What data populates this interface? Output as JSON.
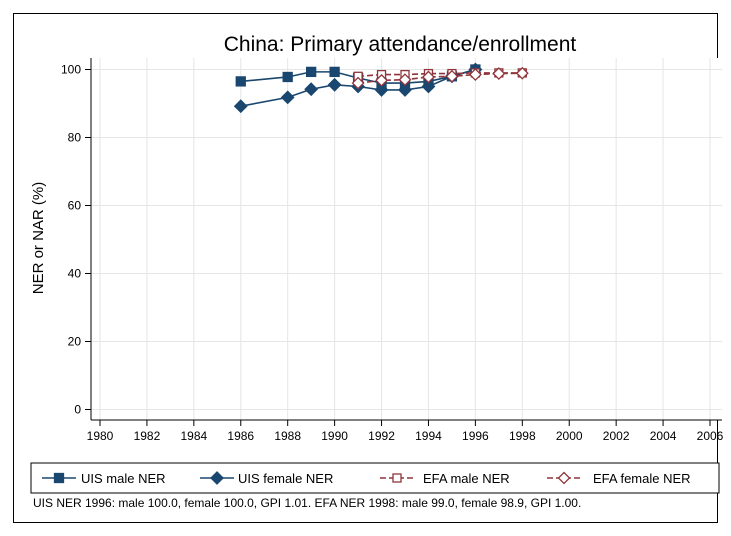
{
  "chart_data": {
    "type": "line",
    "title": "China: Primary attendance/enrollment",
    "xlabel": "",
    "ylabel": "NER or NAR (%)",
    "xlim": [
      1980,
      2006
    ],
    "ylim": [
      0,
      100
    ],
    "xticks": [
      "1980",
      "1982",
      "1984",
      "1986",
      "1988",
      "1990",
      "1992",
      "1994",
      "1996",
      "1998",
      "2000",
      "2002",
      "2004",
      "2006"
    ],
    "yticks": [
      "0",
      "20",
      "40",
      "60",
      "80",
      "100"
    ],
    "grid": true,
    "legend_position": "bottom",
    "series": [
      {
        "name": "UIS male NER",
        "color": "#1a476f",
        "marker": "filled-square",
        "line": "solid",
        "x": [
          1986,
          1988,
          1989,
          1990,
          1991,
          1992,
          1993,
          1994,
          1995,
          1996
        ],
        "y": [
          96.5,
          97.8,
          99.3,
          99.3,
          97.5,
          96.0,
          96.0,
          96.5,
          98.0,
          100.0
        ]
      },
      {
        "name": "UIS female NER",
        "color": "#1a476f",
        "marker": "filled-diamond",
        "line": "solid",
        "x": [
          1986,
          1988,
          1989,
          1990,
          1991,
          1992,
          1993,
          1994,
          1995,
          1996
        ],
        "y": [
          89.2,
          91.8,
          94.2,
          95.5,
          95.0,
          94.0,
          94.0,
          95.0,
          98.0,
          100.0
        ]
      },
      {
        "name": "EFA male NER",
        "color": "#90353b",
        "marker": "hollow-square",
        "line": "dashed",
        "x": [
          1991,
          1992,
          1993,
          1994,
          1995,
          1996,
          1997,
          1998
        ],
        "y": [
          98.0,
          98.5,
          98.5,
          98.8,
          98.8,
          99.0,
          99.0,
          99.0
        ]
      },
      {
        "name": "EFA female NER",
        "color": "#90353b",
        "marker": "hollow-diamond",
        "line": "dashed",
        "x": [
          1991,
          1992,
          1993,
          1994,
          1995,
          1996,
          1997,
          1998
        ],
        "y": [
          96.0,
          96.8,
          97.0,
          97.8,
          98.0,
          98.5,
          98.8,
          98.9
        ]
      }
    ],
    "note": "UIS NER 1996: male 100.0, female 100.0, GPI 1.01. EFA NER 1998: male 99.0, female 98.9, GPI 1.00."
  }
}
